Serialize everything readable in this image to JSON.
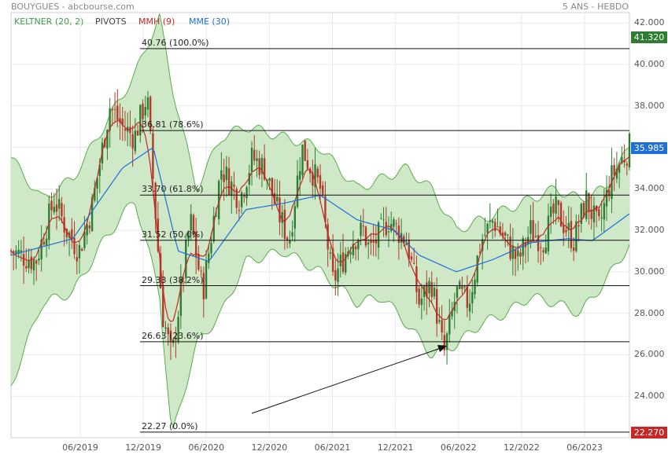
{
  "header": {
    "title": "BOUYGUES - abcbourse.com",
    "period": "5 ANS - HEBDO"
  },
  "legend": [
    {
      "label": "KELTNER (20, 2)",
      "color": "#43a047"
    },
    {
      "label": "PIVOTS",
      "color": "#444444"
    },
    {
      "label": "MMH (9)",
      "color": "#c62828"
    },
    {
      "label": "MME (30)",
      "color": "#1e6fd9"
    }
  ],
  "colors": {
    "band_fill": "#cfe9c8",
    "band_line": "#5aab4c",
    "candle_up": "#2e7d32",
    "candle_down": "#b23a2a",
    "mmh": "#c62828",
    "mme": "#1e6fd9",
    "badge_current": "#1e6fd9",
    "badge_high": "#2e7d32",
    "badge_low": "#c62828",
    "grid": "#e8e8e8"
  },
  "badges": {
    "high": "41.320",
    "current": "35.985",
    "low": "22.270"
  },
  "chart_data": {
    "type": "candlestick",
    "y_axis_side": "right",
    "ylim": [
      22,
      42.5
    ],
    "y_ticks": [
      "42.000",
      "40.000",
      "38.000",
      "36.000",
      "34.000",
      "32.000",
      "30.000",
      "28.000",
      "26.000",
      "24.000"
    ],
    "x_ticks": [
      "06/2019",
      "12/2019",
      "06/2020",
      "12/2020",
      "06/2021",
      "12/2021",
      "06/2022",
      "12/2022",
      "06/2023"
    ],
    "grid": true,
    "fibonacci": [
      {
        "value": 40.76,
        "label": "40.76 (100.0%)"
      },
      {
        "value": 36.81,
        "label": "36.81 (78.6%)"
      },
      {
        "value": 33.7,
        "label": "33.70 (61.8%)"
      },
      {
        "value": 31.52,
        "label": "31.52 (50.0%)"
      },
      {
        "value": 29.33,
        "label": "29.33 (38.2%)"
      },
      {
        "value": 26.63,
        "label": "26.63 (23.6%)"
      },
      {
        "value": 22.27,
        "label": "22.27 (0.0%)"
      }
    ],
    "close_path": {
      "t": [
        0,
        0.04,
        0.07,
        0.09,
        0.11,
        0.13,
        0.16,
        0.18,
        0.2,
        0.22,
        0.245,
        0.26,
        0.29,
        0.31,
        0.34,
        0.37,
        0.39,
        0.41,
        0.43,
        0.45,
        0.47,
        0.5,
        0.52,
        0.55,
        0.57,
        0.58,
        0.61,
        0.64,
        0.66,
        0.68,
        0.7,
        0.72,
        0.74,
        0.76,
        0.78,
        0.8,
        0.82,
        0.84,
        0.86,
        0.88,
        0.91,
        0.93,
        0.95,
        0.97,
        1.0
      ],
      "v": [
        31.0,
        30.5,
        33.5,
        32.0,
        31.0,
        33.0,
        38.0,
        37.0,
        36.5,
        38.5,
        28.0,
        25.8,
        32.5,
        29.0,
        35.0,
        33.5,
        35.5,
        35.0,
        33.0,
        31.5,
        36.0,
        34.0,
        29.5,
        31.5,
        32.0,
        31.0,
        32.5,
        31.5,
        28.5,
        29.5,
        26.0,
        29.0,
        28.5,
        31.5,
        32.5,
        31.5,
        30.5,
        32.0,
        31.5,
        33.0,
        31.5,
        33.5,
        32.0,
        34.5,
        36.0
      ]
    },
    "mme_path": {
      "t": [
        0,
        0.1,
        0.18,
        0.23,
        0.27,
        0.32,
        0.38,
        0.44,
        0.5,
        0.56,
        0.62,
        0.66,
        0.72,
        0.78,
        0.84,
        0.9,
        0.94,
        1.0
      ],
      "v": [
        30.8,
        31.6,
        35.0,
        36.0,
        31.0,
        30.5,
        33.0,
        33.3,
        33.7,
        32.5,
        32.0,
        30.8,
        30.0,
        30.6,
        31.4,
        31.6,
        31.5,
        32.8
      ]
    },
    "keltner_upper": {
      "t": [
        0,
        0.05,
        0.1,
        0.15,
        0.2,
        0.24,
        0.26,
        0.3,
        0.34,
        0.38,
        0.44,
        0.5,
        0.56,
        0.6,
        0.64,
        0.68,
        0.72,
        0.76,
        0.8,
        0.84,
        0.88,
        0.92,
        0.96,
        1.0
      ],
      "v": [
        35.5,
        33.5,
        34.5,
        37.0,
        39.5,
        42.3,
        39.0,
        34.0,
        36.5,
        37.0,
        36.5,
        36.0,
        34.0,
        34.5,
        35.0,
        34.0,
        32.0,
        32.5,
        33.0,
        33.5,
        34.0,
        33.5,
        34.0,
        36.0
      ]
    },
    "keltner_lower": {
      "t": [
        0,
        0.05,
        0.1,
        0.15,
        0.2,
        0.24,
        0.26,
        0.3,
        0.34,
        0.38,
        0.44,
        0.5,
        0.56,
        0.6,
        0.64,
        0.68,
        0.72,
        0.76,
        0.8,
        0.84,
        0.88,
        0.92,
        0.96,
        1.0
      ],
      "v": [
        24.5,
        28.5,
        29.0,
        31.5,
        33.5,
        29.0,
        22.0,
        26.5,
        28.0,
        30.5,
        31.0,
        30.0,
        28.5,
        28.8,
        27.5,
        26.0,
        26.5,
        27.5,
        28.0,
        28.8,
        28.5,
        28.0,
        29.5,
        31.3
      ]
    }
  }
}
